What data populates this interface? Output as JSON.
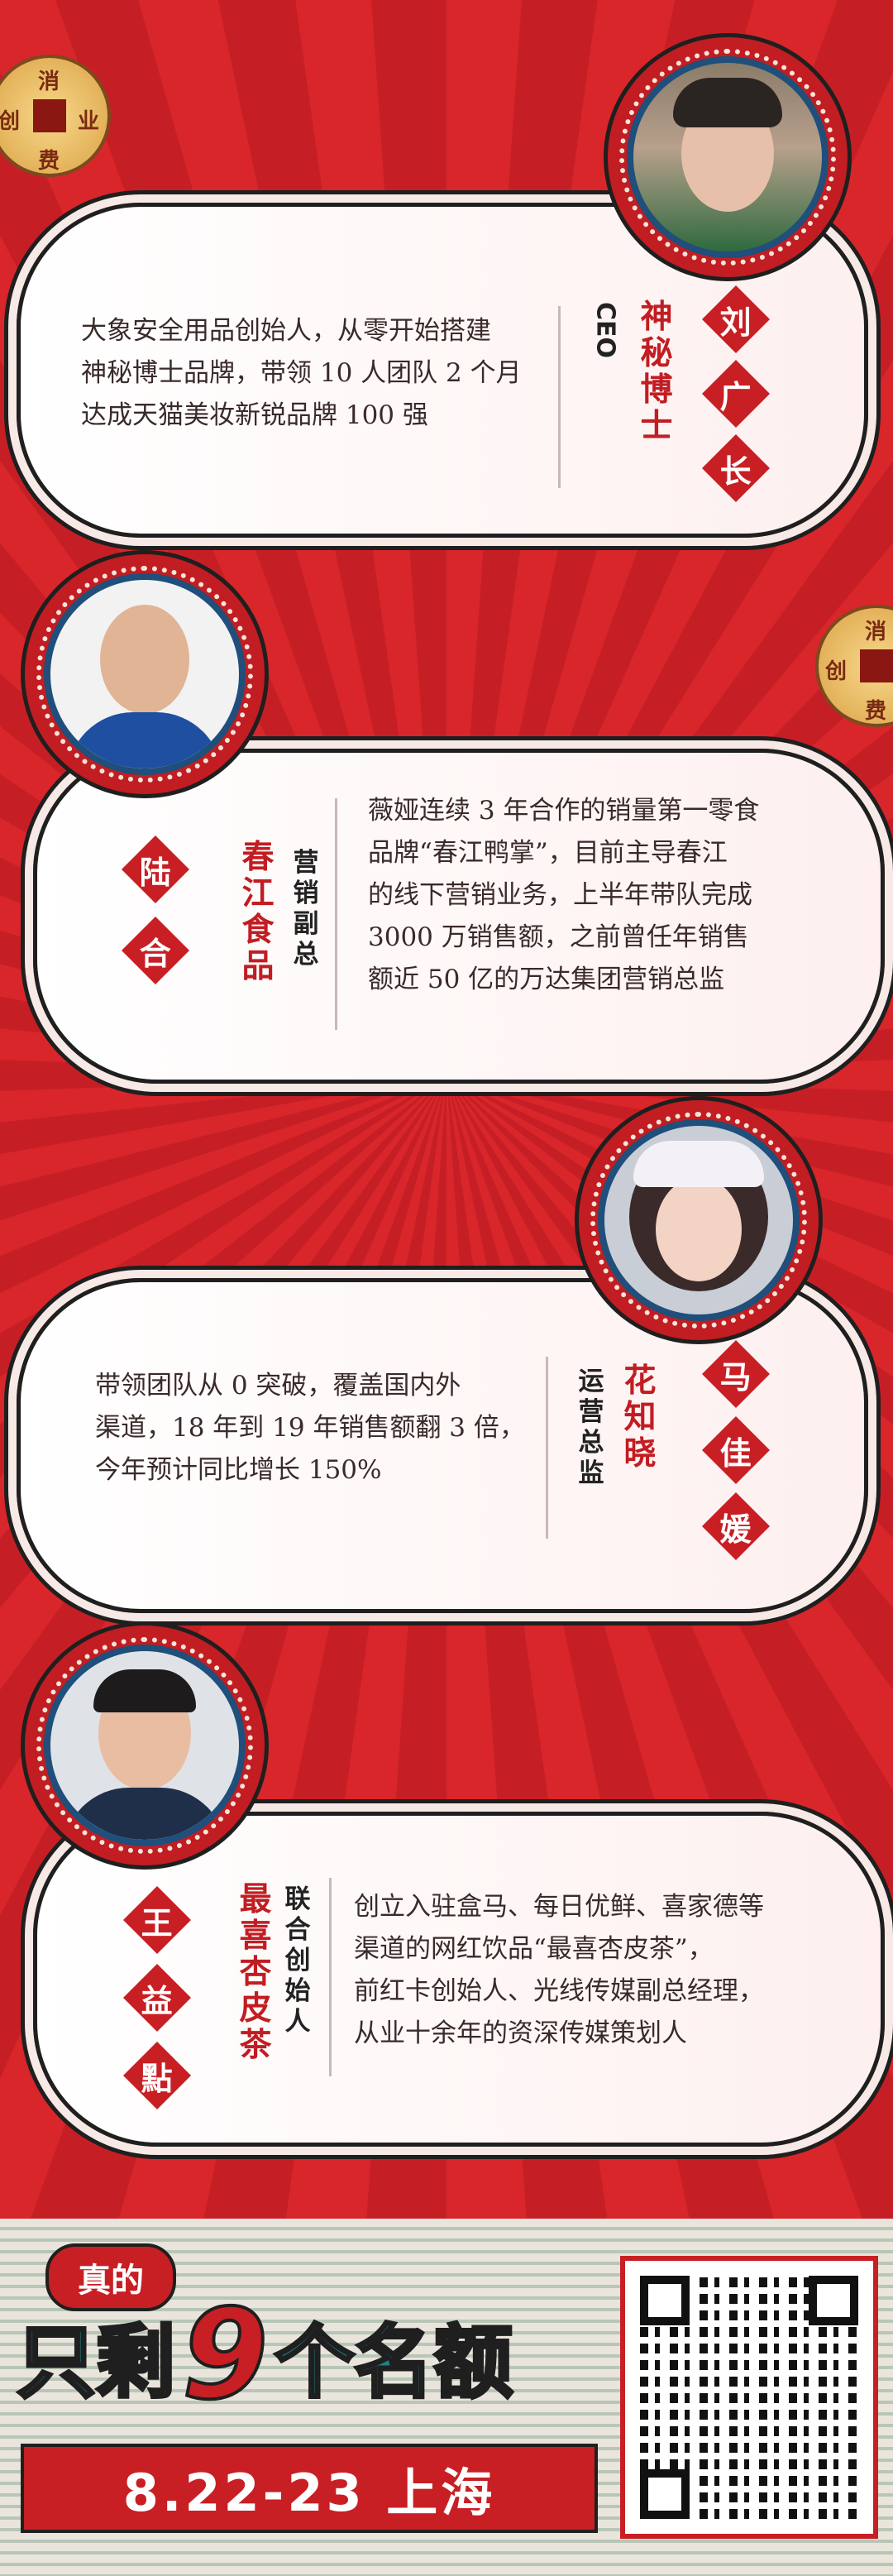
{
  "coin_chars": [
    "消",
    "创",
    "业",
    "费"
  ],
  "people": [
    {
      "name": [
        "刘",
        "广",
        "长"
      ],
      "org": "神秘博士",
      "role": "CEO",
      "desc": [
        "大象安全用品创始人，从零开始搭建",
        "神秘博士品牌，带领 10 人团队 2 个月",
        "达成天猫美妆新锐品牌 100 强"
      ]
    },
    {
      "name": [
        "陆",
        "合"
      ],
      "org": "春江食品",
      "role": "营销副总",
      "desc": [
        "薇娅连续 3 年合作的销量第一零食",
        "品牌“春江鸭掌”，目前主导春江",
        "的线下营销业务，上半年带队完成",
        "3000 万销售额，之前曾任年销售",
        "额近 50 亿的万达集团营销总监"
      ]
    },
    {
      "name": [
        "马",
        "佳",
        "媛"
      ],
      "org": "花知晓",
      "role": "运营总监",
      "desc": [
        "带领团队从 0 突破，覆盖国内外",
        "渠道，18 年到 19 年销售额翻 3 倍，",
        "今年预计同比增长 150%"
      ]
    },
    {
      "name": [
        "王",
        "益",
        "點"
      ],
      "org": "最喜杏皮茶",
      "role": "联合创始人",
      "desc": [
        "创立入驻盒马、每日优鲜、喜家德等",
        "渠道的网红饮品“最喜杏皮茶”，",
        "前红卡创始人、光线传媒副总经理，",
        "从业十余年的资深传媒策划人"
      ]
    }
  ],
  "banner": {
    "tag": "真的",
    "line_pre": "只剩",
    "count": "9",
    "line_post": "个名额",
    "date": "8.22-23 上海"
  },
  "colors": {
    "accent": "#c81f24",
    "dark": "#1f1f1f",
    "teal": "#1f7f86"
  }
}
